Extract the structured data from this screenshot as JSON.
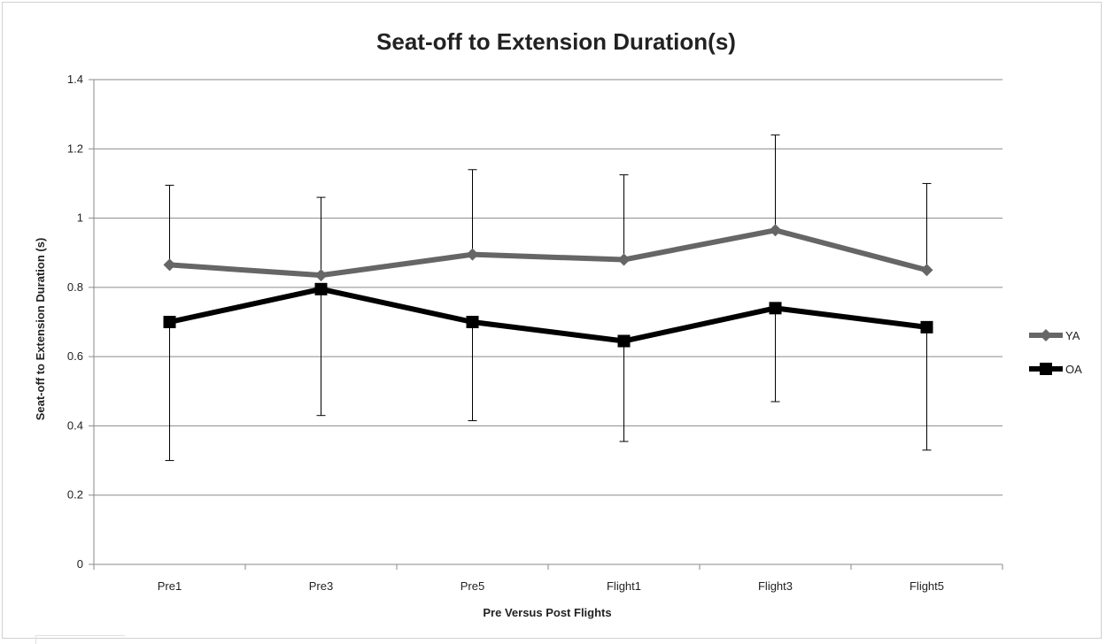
{
  "chart_data": {
    "type": "line",
    "title": "Seat-off to Extension Duration(s)",
    "xlabel": "Pre Versus Post Flights",
    "ylabel": "Seat-off to Extension Duration (s)",
    "categories": [
      "Pre1",
      "Pre3",
      "Pre5",
      "Flight1",
      "Flight3",
      "Flight5"
    ],
    "ylim": [
      0,
      1.4
    ],
    "yticks": [
      0,
      0.2,
      0.4,
      0.6,
      0.8,
      1,
      1.2,
      1.4
    ],
    "ytick_labels": [
      "0",
      "0.2",
      "0.4",
      "0.6",
      "0.8",
      "1",
      "1.2",
      "1.4"
    ],
    "grid": true,
    "legend_position": "right",
    "series": [
      {
        "name": "YA",
        "color": "#666666",
        "marker": "diamond",
        "values": [
          0.865,
          0.835,
          0.895,
          0.88,
          0.965,
          0.85
        ],
        "error_low": [
          0.865,
          0.835,
          0.895,
          0.88,
          0.965,
          0.85
        ],
        "error_high": [
          1.095,
          1.06,
          1.14,
          1.125,
          1.24,
          1.1
        ]
      },
      {
        "name": "OA",
        "color": "#000000",
        "marker": "square",
        "values": [
          0.7,
          0.795,
          0.7,
          0.645,
          0.74,
          0.685
        ],
        "error_low": [
          0.3,
          0.43,
          0.415,
          0.355,
          0.47,
          0.33
        ],
        "error_high": [
          0.7,
          0.795,
          0.7,
          0.645,
          0.74,
          0.685
        ]
      }
    ]
  }
}
